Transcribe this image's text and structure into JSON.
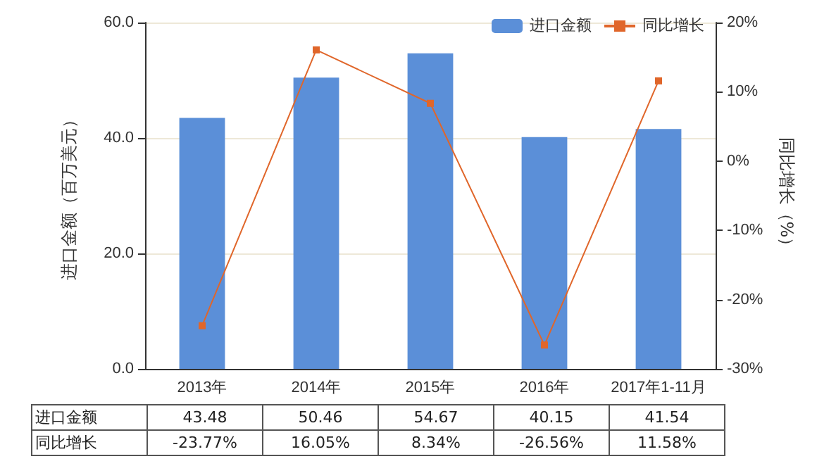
{
  "chart_data": {
    "type": "bar",
    "categories": [
      "2013年",
      "2014年",
      "2015年",
      "2016年",
      "2017年1-11月"
    ],
    "ylabel": "进口金额（百万美元）",
    "y2label": "同比增长（%）",
    "series": [
      {
        "name": "进口金额",
        "color": "#5b8fd8",
        "values": [
          43.48,
          50.46,
          54.67,
          40.15,
          41.54
        ],
        "value_labels": [
          "43.48",
          "50.46",
          "54.67",
          "40.15",
          "41.54"
        ]
      },
      {
        "name": "同比增长",
        "type": "line",
        "axis": "y2",
        "color": "#e0662a",
        "marker": "square",
        "values": [
          -23.77,
          16.05,
          8.34,
          -26.56,
          11.58
        ],
        "value_labels": [
          "-23.77%",
          "16.05%",
          "8.34%",
          "-26.56%",
          "11.58%"
        ]
      }
    ],
    "ylim": [
      0,
      60
    ],
    "yticks": [
      {
        "value": 0,
        "label": "0.0"
      },
      {
        "value": 20,
        "label": "20.0"
      },
      {
        "value": 40,
        "label": "40.0"
      },
      {
        "value": 60,
        "label": "60.0"
      }
    ],
    "y2lim": [
      -30,
      20
    ],
    "y2ticks": [
      {
        "value": -30,
        "label": "-30%"
      },
      {
        "value": -20,
        "label": "-20%"
      },
      {
        "value": -10,
        "label": "-10%"
      },
      {
        "value": 0,
        "label": "0%"
      },
      {
        "value": 10,
        "label": "10%"
      },
      {
        "value": 20,
        "label": "20%"
      }
    ],
    "grid": "y",
    "legend": "top right"
  }
}
